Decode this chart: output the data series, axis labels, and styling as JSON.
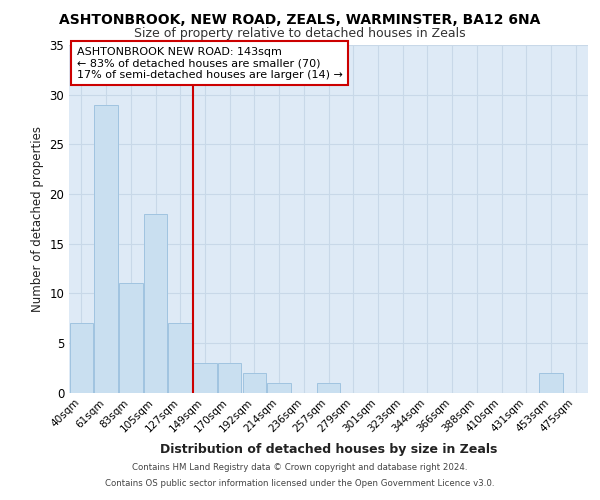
{
  "title1": "ASHTONBROOK, NEW ROAD, ZEALS, WARMINSTER, BA12 6NA",
  "title2": "Size of property relative to detached houses in Zeals",
  "xlabel": "Distribution of detached houses by size in Zeals",
  "ylabel": "Number of detached properties",
  "bin_labels": [
    "40sqm",
    "61sqm",
    "83sqm",
    "105sqm",
    "127sqm",
    "149sqm",
    "170sqm",
    "192sqm",
    "214sqm",
    "236sqm",
    "257sqm",
    "279sqm",
    "301sqm",
    "323sqm",
    "344sqm",
    "366sqm",
    "388sqm",
    "410sqm",
    "431sqm",
    "453sqm",
    "475sqm"
  ],
  "bin_values": [
    7,
    29,
    11,
    18,
    7,
    3,
    3,
    2,
    1,
    0,
    1,
    0,
    0,
    0,
    0,
    0,
    0,
    0,
    0,
    2,
    0
  ],
  "bar_color": "#c9dff0",
  "bar_edge_color": "#a0c4e0",
  "grid_color": "#c8d8e8",
  "vline_color": "#cc0000",
  "annotation_line1": "ASHTONBROOK NEW ROAD: 143sqm",
  "annotation_line2": "← 83% of detached houses are smaller (70)",
  "annotation_line3": "17% of semi-detached houses are larger (14) →",
  "annotation_box_edge_color": "#cc0000",
  "ylim": [
    0,
    35
  ],
  "yticks": [
    0,
    5,
    10,
    15,
    20,
    25,
    30,
    35
  ],
  "footer1": "Contains HM Land Registry data © Crown copyright and database right 2024.",
  "footer2": "Contains OS public sector information licensed under the Open Government Licence v3.0.",
  "background_color": "#deeaf6",
  "fig_color": "white"
}
